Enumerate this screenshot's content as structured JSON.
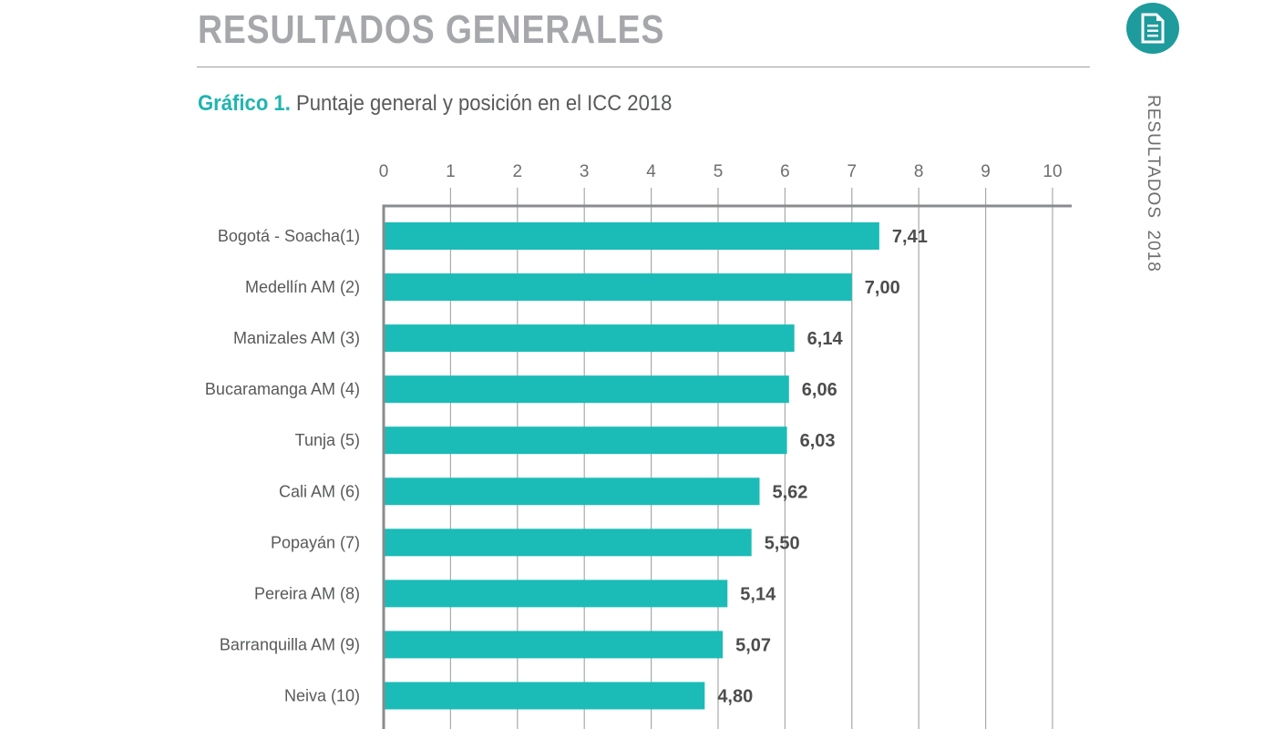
{
  "header": {
    "title": "RESULTADOS GENERALES",
    "subtitle_prefix": "Gráfico 1.",
    "subtitle": "Puntaje general y posición en el ICC 2018",
    "side_label": "RESULTADOS  2018",
    "doc_icon": "document-icon",
    "accent_color": "#1e9b9c"
  },
  "chart_data": {
    "type": "bar",
    "orientation": "horizontal",
    "title": "Puntaje general y posición en el ICC 2018",
    "categories": [
      "Bogotá - Soacha(1)",
      "Medellín AM (2)",
      "Manizales AM (3)",
      "Bucaramanga AM (4)",
      "Tunja (5)",
      "Cali AM (6)",
      "Popayán (7)",
      "Pereira AM (8)",
      "Barranquilla AM (9)",
      "Neiva (10)"
    ],
    "values": [
      7.41,
      7.0,
      6.14,
      6.06,
      6.03,
      5.62,
      5.5,
      5.14,
      5.07,
      4.8
    ],
    "value_labels": [
      "7,41",
      "7,00",
      "6,14",
      "6,06",
      "6,03",
      "5,62",
      "5,50",
      "5,14",
      "5,07",
      "4,80"
    ],
    "xlim": [
      0,
      10
    ],
    "xticks": [
      "0",
      "1",
      "2",
      "3",
      "4",
      "5",
      "6",
      "7",
      "8",
      "9",
      "10"
    ],
    "xaxis_position": "top",
    "grid": true,
    "bar_color": "#1bbcb7",
    "xlabel": "",
    "ylabel": ""
  }
}
